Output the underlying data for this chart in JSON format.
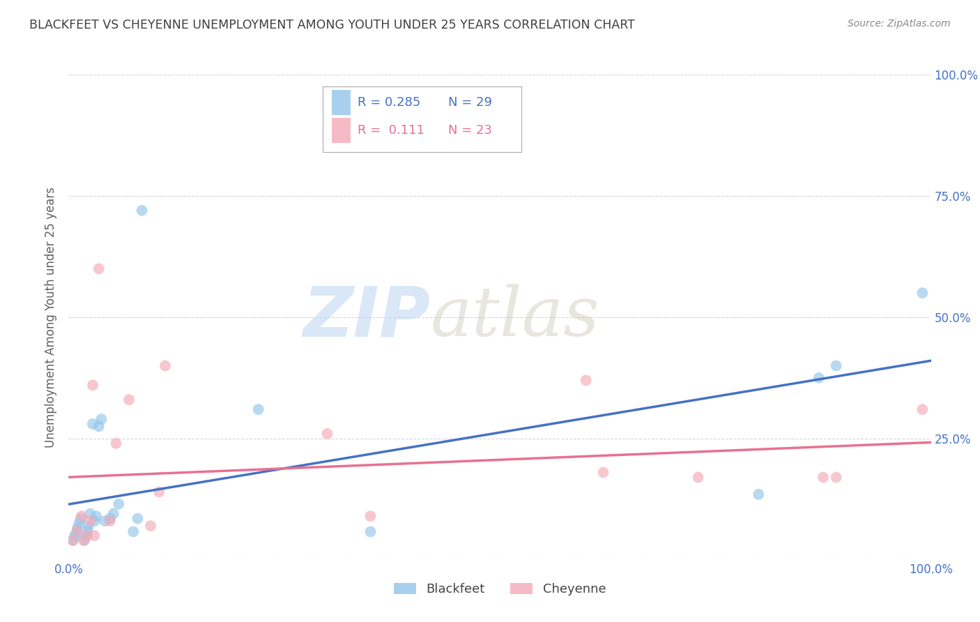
{
  "title": "BLACKFEET VS CHEYENNE UNEMPLOYMENT AMONG YOUTH UNDER 25 YEARS CORRELATION CHART",
  "source": "Source: ZipAtlas.com",
  "ylabel": "Unemployment Among Youth under 25 years",
  "xlim": [
    0,
    1.0
  ],
  "ylim": [
    0,
    1.0
  ],
  "ytick_positions": [
    0.0,
    0.25,
    0.5,
    0.75,
    1.0
  ],
  "right_ytick_labels": [
    "",
    "25.0%",
    "50.0%",
    "75.0%",
    "100.0%"
  ],
  "blackfeet_color": "#92C5E8",
  "cheyenne_color": "#F4A9B8",
  "blackfeet_line_color": "#4472C4",
  "cheyenne_line_color": "#E87090",
  "legend_R_blackfeet": "R = 0.285",
  "legend_N_blackfeet": "N = 29",
  "legend_R_cheyenne": "R =  0.111",
  "legend_N_cheyenne": "N = 23",
  "blackfeet_x": [
    0.005,
    0.007,
    0.009,
    0.01,
    0.012,
    0.014,
    0.018,
    0.02,
    0.022,
    0.023,
    0.025,
    0.028,
    0.03,
    0.032,
    0.035,
    0.038,
    0.042,
    0.048,
    0.052,
    0.058,
    0.075,
    0.08,
    0.085,
    0.22,
    0.35,
    0.8,
    0.87,
    0.89,
    0.99
  ],
  "blackfeet_y": [
    0.04,
    0.05,
    0.055,
    0.065,
    0.075,
    0.085,
    0.04,
    0.05,
    0.06,
    0.07,
    0.095,
    0.28,
    0.08,
    0.09,
    0.275,
    0.29,
    0.08,
    0.085,
    0.095,
    0.115,
    0.058,
    0.085,
    0.72,
    0.31,
    0.058,
    0.135,
    0.375,
    0.4,
    0.55
  ],
  "cheyenne_x": [
    0.005,
    0.01,
    0.015,
    0.018,
    0.022,
    0.025,
    0.028,
    0.03,
    0.035,
    0.048,
    0.055,
    0.07,
    0.095,
    0.105,
    0.112,
    0.3,
    0.35,
    0.6,
    0.62,
    0.73,
    0.875,
    0.89,
    0.99
  ],
  "cheyenne_y": [
    0.04,
    0.06,
    0.09,
    0.04,
    0.05,
    0.08,
    0.36,
    0.05,
    0.6,
    0.08,
    0.24,
    0.33,
    0.07,
    0.14,
    0.4,
    0.26,
    0.09,
    0.37,
    0.18,
    0.17,
    0.17,
    0.17,
    0.31
  ],
  "watermark_zip": "ZIP",
  "watermark_atlas": "atlas",
  "marker_size": 130,
  "background_color": "#FFFFFF",
  "grid_color": "#CCCCCC",
  "tick_color": "#4472C4",
  "title_color": "#404040",
  "source_color": "#888888",
  "ylabel_color": "#606060"
}
